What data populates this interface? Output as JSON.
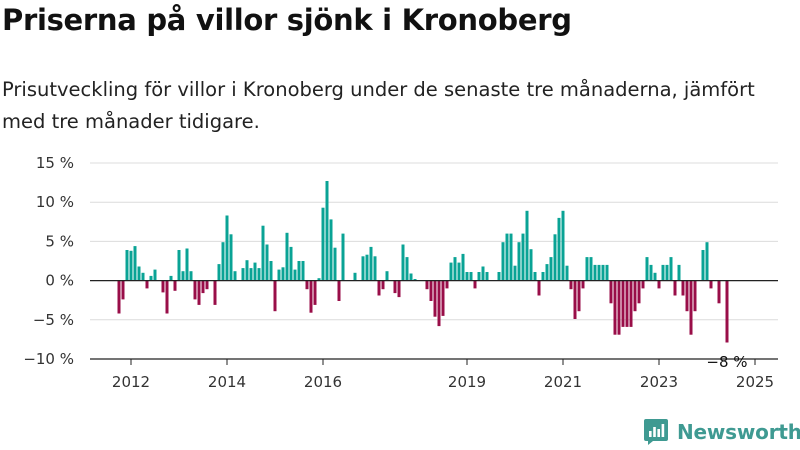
{
  "chart_data": {
    "type": "bar",
    "title": "Priserna på villor sjönk i Kronoberg",
    "subtitle": "Prisutveckling för villor i Kronoberg under de senaste tre månaderna, jämfört med tre månader tidigare.",
    "ylim": [
      -10,
      15
    ],
    "y_ticks": [
      15,
      10,
      5,
      0,
      -5,
      -10
    ],
    "y_tick_labels": [
      "15 %",
      "10 %",
      "5 %",
      "0 %",
      "−5 %",
      "−10 %"
    ],
    "x_start": "2011-10",
    "x_ticks": [
      {
        "label": "2012",
        "date": "2012-01"
      },
      {
        "label": "2014",
        "date": "2014-01"
      },
      {
        "label": "2016",
        "date": "2016-01"
      },
      {
        "label": "2019",
        "date": "2019-01"
      },
      {
        "label": "2021",
        "date": "2021-01"
      },
      {
        "label": "2023",
        "date": "2023-01"
      },
      {
        "label": "2025",
        "date": "2025-01"
      }
    ],
    "positive_color": "#0aa395",
    "negative_color": "#990e48",
    "grid": true,
    "end_label": "−8 %",
    "values": [
      -4.2,
      -2.4,
      3.9,
      3.8,
      4.4,
      1.8,
      1.0,
      -1.0,
      0.6,
      1.4,
      0.0,
      -1.5,
      -4.2,
      0.6,
      -1.3,
      3.9,
      1.2,
      4.1,
      1.2,
      -2.4,
      -3.1,
      -1.6,
      -1.1,
      0.0,
      -3.1,
      2.1,
      4.9,
      8.3,
      5.9,
      1.2,
      0.0,
      1.6,
      2.6,
      1.6,
      2.3,
      1.6,
      7.0,
      4.6,
      2.5,
      -3.9,
      1.4,
      1.7,
      6.1,
      4.3,
      1.4,
      2.5,
      2.5,
      -1.1,
      -4.1,
      -3.1,
      0.3,
      9.3,
      12.7,
      7.8,
      4.2,
      -2.6,
      6.0,
      0.0,
      0.0,
      1.0,
      0.0,
      3.1,
      3.3,
      4.3,
      3.1,
      -1.9,
      -1.1,
      1.2,
      0.0,
      -1.6,
      -2.1,
      4.6,
      3.0,
      0.9,
      0.2,
      0.0,
      0.0,
      -1.1,
      -2.6,
      -4.6,
      -5.8,
      -4.5,
      -1.0,
      2.3,
      3.0,
      2.3,
      3.4,
      1.1,
      1.1,
      -1.0,
      1.1,
      1.8,
      1.1,
      0.0,
      0.0,
      1.1,
      4.9,
      6.0,
      6.0,
      1.9,
      4.9,
      6.0,
      8.9,
      4.0,
      1.1,
      -1.9,
      1.1,
      2.1,
      3.0,
      5.9,
      8.0,
      8.9,
      1.9,
      -1.1,
      -4.9,
      -3.9,
      -1.0,
      3.0,
      3.0,
      2.0,
      2.0,
      2.0,
      2.0,
      -2.9,
      -6.9,
      -6.9,
      -5.9,
      -5.9,
      -5.9,
      -3.9,
      -2.9,
      -1.0,
      3.0,
      2.0,
      1.0,
      -1.0,
      2.0,
      2.0,
      3.0,
      -1.9,
      2.0,
      -1.9,
      -3.9,
      -6.9,
      -3.9,
      0.0,
      3.9,
      4.9,
      -1.0,
      0.0,
      -2.9,
      0.0,
      -7.9
    ]
  },
  "brand": {
    "name": "Newsworthy",
    "logo_color": "#3f9a92"
  }
}
